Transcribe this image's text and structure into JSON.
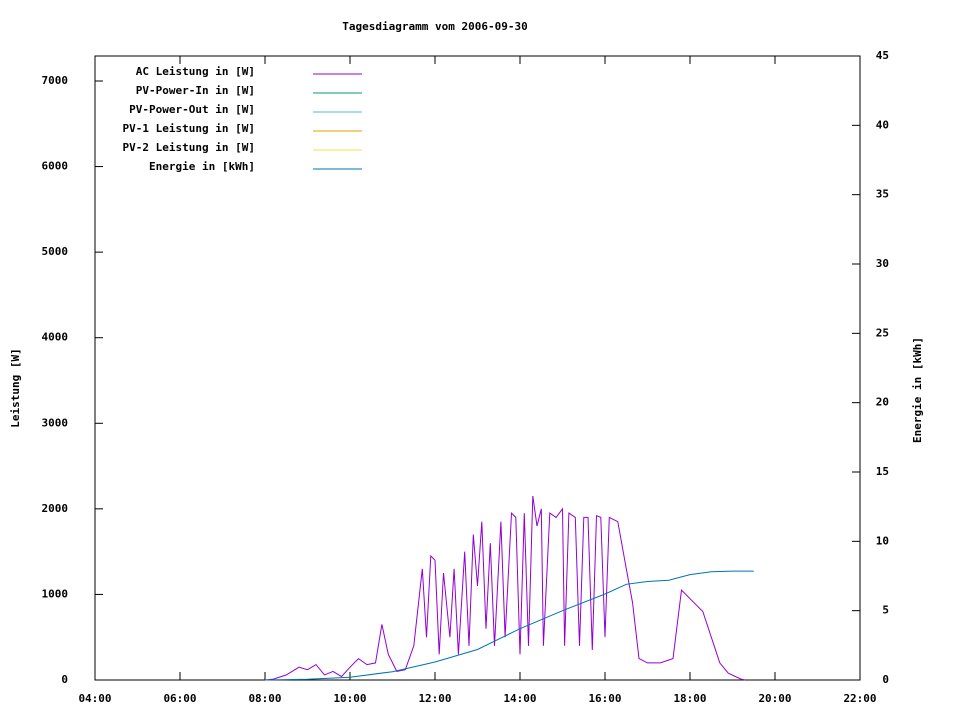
{
  "chart_data": {
    "type": "line",
    "title": "Tagesdiagramm vom 2006-09-30",
    "ylabel": "Leistung [W]",
    "y2label": "Energie in [kWh]",
    "legend": "top-left",
    "xlim": [
      4,
      22
    ],
    "xticks": [
      {
        "value": 4,
        "label": "04:00"
      },
      {
        "value": 6,
        "label": "06:00"
      },
      {
        "value": 8,
        "label": "08:00"
      },
      {
        "value": 10,
        "label": "10:00"
      },
      {
        "value": 12,
        "label": "12:00"
      },
      {
        "value": 14,
        "label": "14:00"
      },
      {
        "value": 16,
        "label": "16:00"
      },
      {
        "value": 18,
        "label": "18:00"
      },
      {
        "value": 20,
        "label": "20:00"
      },
      {
        "value": 22,
        "label": "22:00"
      }
    ],
    "ylim": [
      0,
      7292
    ],
    "yticks": [
      0,
      1000,
      2000,
      3000,
      4000,
      5000,
      6000,
      7000
    ],
    "y2lim": [
      0,
      45
    ],
    "y2ticks": [
      0,
      5,
      10,
      15,
      20,
      25,
      30,
      35,
      40,
      45
    ],
    "series": [
      {
        "name": "AC Leistung in [W]",
        "color": "#9400d3",
        "x": [
          8.0,
          8.2,
          8.5,
          8.8,
          9.0,
          9.2,
          9.4,
          9.6,
          9.8,
          10.0,
          10.2,
          10.4,
          10.6,
          10.75,
          10.9,
          11.1,
          11.3,
          11.5,
          11.7,
          11.8,
          11.9,
          12.0,
          12.1,
          12.2,
          12.35,
          12.45,
          12.55,
          12.7,
          12.8,
          12.9,
          13.0,
          13.1,
          13.2,
          13.3,
          13.4,
          13.55,
          13.65,
          13.8,
          13.9,
          14.0,
          14.1,
          14.2,
          14.3,
          14.4,
          14.5,
          14.55,
          14.7,
          14.85,
          15.0,
          15.05,
          15.15,
          15.3,
          15.4,
          15.5,
          15.6,
          15.7,
          15.8,
          15.9,
          16.0,
          16.1,
          16.3,
          16.5,
          16.65,
          16.8,
          17.0,
          17.3,
          17.6,
          17.8,
          18.0,
          18.3,
          18.5,
          18.7,
          18.9,
          19.2,
          19.3
        ],
        "values": [
          0,
          10,
          60,
          150,
          120,
          180,
          60,
          100,
          40,
          150,
          250,
          180,
          200,
          650,
          300,
          100,
          120,
          400,
          1300,
          500,
          1450,
          1400,
          300,
          1250,
          500,
          1300,
          300,
          1500,
          400,
          1700,
          1100,
          1850,
          600,
          1600,
          400,
          1850,
          500,
          1950,
          1900,
          300,
          1950,
          400,
          2150,
          1800,
          2000,
          400,
          1950,
          1900,
          2000,
          400,
          1950,
          1900,
          400,
          1900,
          1900,
          350,
          1920,
          1900,
          500,
          1900,
          1850,
          1300,
          900,
          250,
          200,
          200,
          250,
          1050,
          950,
          800,
          500,
          200,
          80,
          10,
          0
        ]
      },
      {
        "name": "PV-Power-In in [W]",
        "color": "#009e73",
        "x": [],
        "values": []
      },
      {
        "name": "PV-Power-Out in [W]",
        "color": "#56b4e9",
        "x": [],
        "values": []
      },
      {
        "name": "PV-1 Leistung in [W]",
        "color": "#e69f00",
        "x": [],
        "values": []
      },
      {
        "name": "PV-2 Leistung in [W]",
        "color": "#f0e442",
        "x": [],
        "values": []
      },
      {
        "name": "Energie in [kWh]",
        "color": "#0072b2",
        "axis": "y2",
        "x": [
          8.0,
          9.0,
          10.0,
          11.0,
          12.0,
          13.0,
          14.0,
          15.0,
          16.0,
          16.5,
          17.0,
          17.5,
          18.0,
          18.5,
          19.0,
          19.5
        ],
        "values": [
          0,
          0.05,
          0.2,
          0.6,
          1.3,
          2.2,
          3.7,
          5.0,
          6.2,
          6.9,
          7.1,
          7.2,
          7.6,
          7.8,
          7.85,
          7.85
        ]
      }
    ]
  }
}
